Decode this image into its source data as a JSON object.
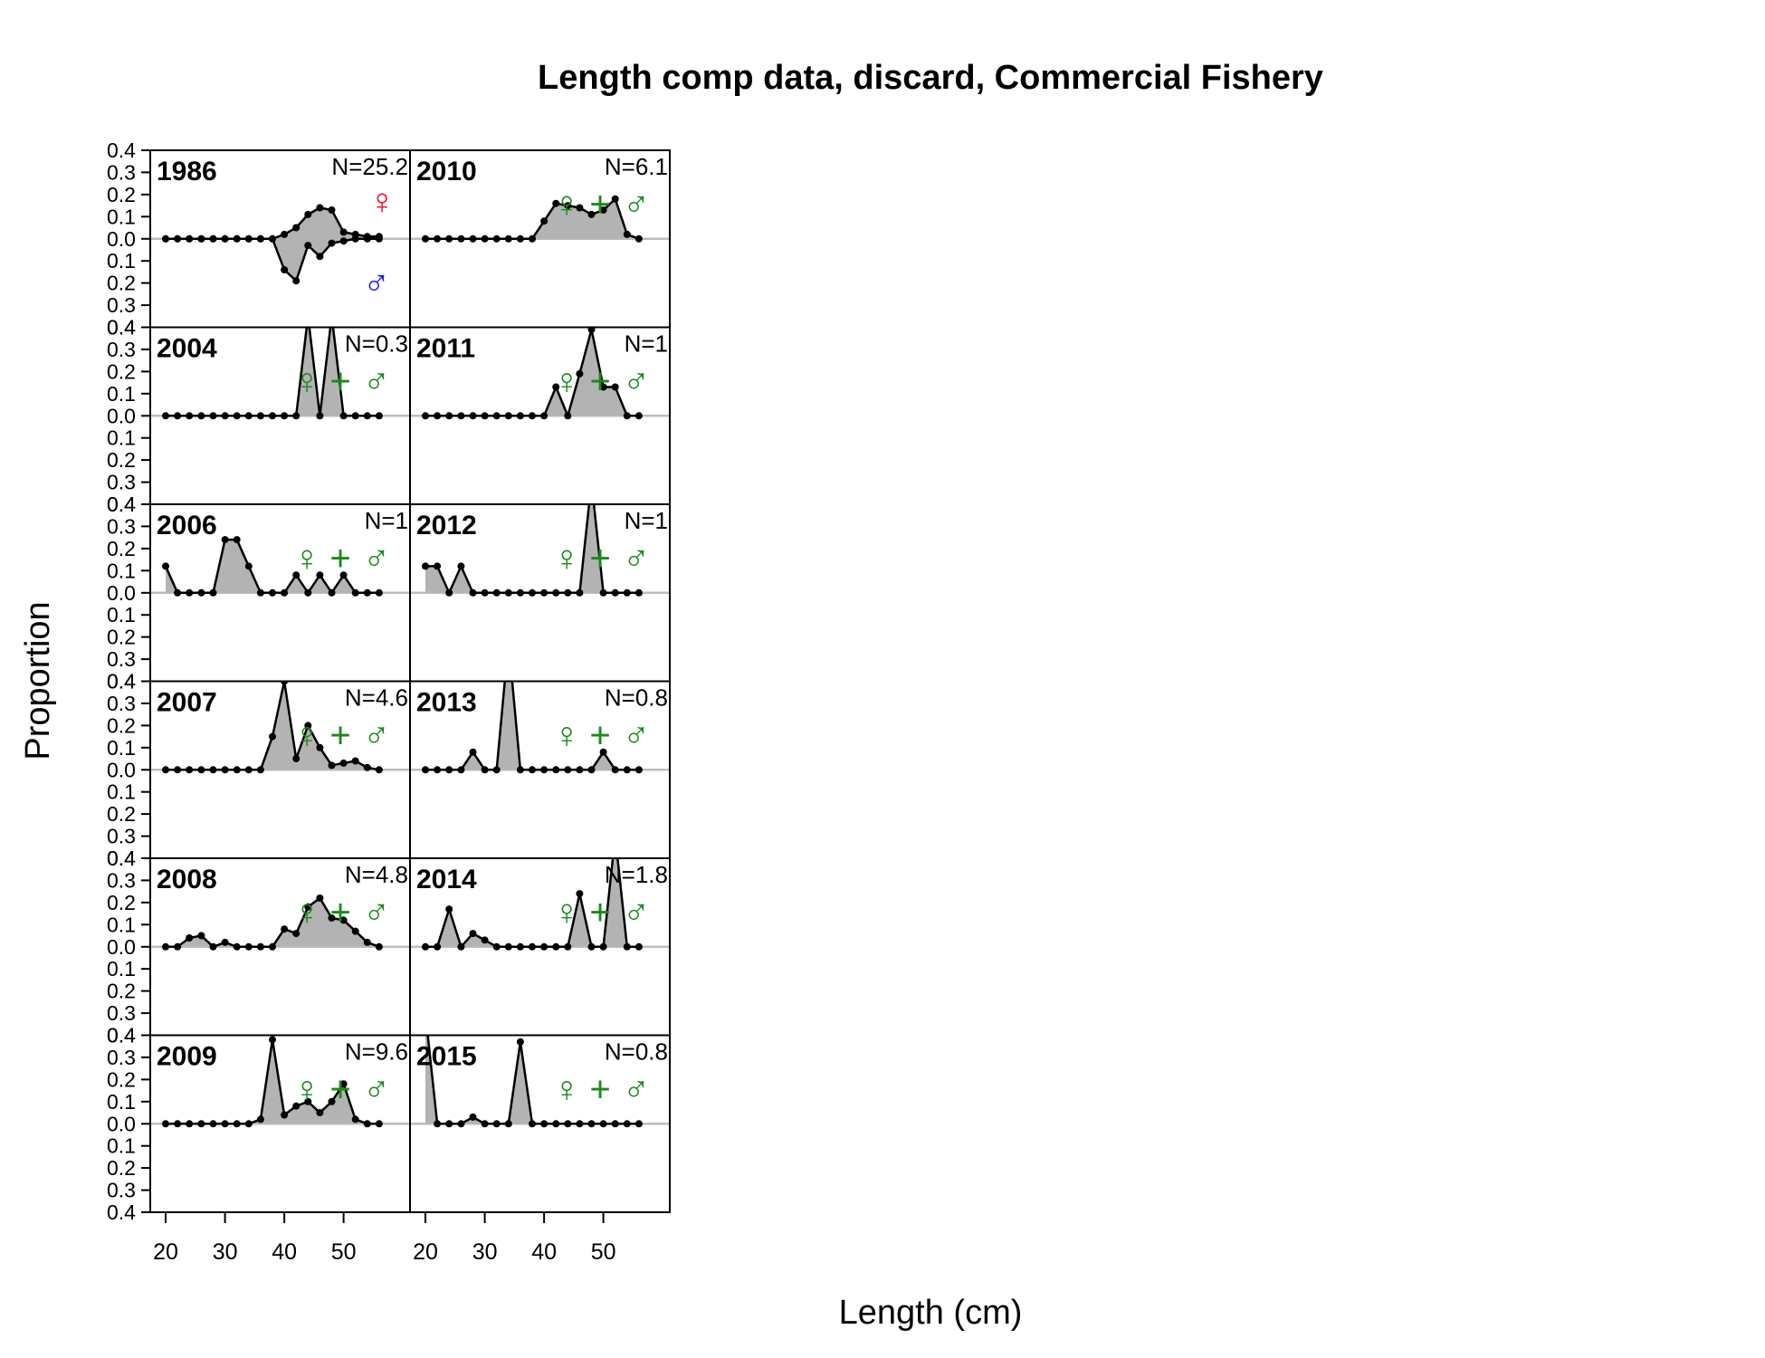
{
  "chart_data": {
    "type": "area",
    "title": "Length comp data, discard, Commercial Fishery",
    "xlabel": "Length (cm)",
    "ylabel": "Proportion",
    "x_ticks": [
      20,
      30,
      40,
      50
    ],
    "x_tick_labels": [
      "20",
      "30",
      "40",
      "50"
    ],
    "y_ticks": [
      0.4,
      0.3,
      0.2,
      0.1,
      0.0,
      0.1,
      0.2,
      0.3,
      0.4
    ],
    "y_tick_labels": [
      "0.4",
      "0.3",
      "0.2",
      "0.1",
      "0.0",
      "0.1",
      "0.2",
      "0.3",
      "0.4"
    ],
    "x": [
      20,
      22,
      24,
      26,
      28,
      30,
      32,
      34,
      36,
      38,
      40,
      42,
      44,
      46,
      48,
      50,
      52,
      54,
      56
    ],
    "ylim": [
      -0.4,
      0.4
    ],
    "sex_symbols": {
      "female": "♀",
      "male": "♂",
      "combined": "+"
    },
    "colors": {
      "female": "#e8121b",
      "male": "#1a1aff",
      "combined": "#1a8a1a",
      "fill": "#b3b3b3",
      "zero_line": "#bdbdbd"
    },
    "panels": [
      {
        "year": "1986",
        "n_label": "N=25.2",
        "col": 0,
        "row": 0,
        "sexed": true,
        "female": [
          0,
          0,
          0,
          0,
          0,
          0,
          0,
          0,
          0,
          0,
          0.02,
          0.05,
          0.11,
          0.14,
          0.13,
          0.03,
          0.02,
          0.01,
          0.01
        ],
        "male": [
          0,
          0,
          0,
          0,
          0,
          0,
          0,
          0,
          0,
          0,
          0.14,
          0.19,
          0.03,
          0.08,
          0.02,
          0.01,
          0,
          0,
          0
        ]
      },
      {
        "year": "2004",
        "n_label": "N=0.3",
        "col": 0,
        "row": 1,
        "sexed": false,
        "values": [
          0,
          0,
          0,
          0,
          0,
          0,
          0,
          0,
          0,
          0,
          0,
          0,
          0.45,
          0,
          0.45,
          0,
          0,
          0,
          0
        ]
      },
      {
        "year": "2006",
        "n_label": "N=1",
        "col": 0,
        "row": 2,
        "sexed": false,
        "values": [
          0.12,
          0,
          0,
          0,
          0,
          0.24,
          0.24,
          0.12,
          0,
          0,
          0,
          0.08,
          0,
          0.08,
          0,
          0.08,
          0,
          0,
          0
        ]
      },
      {
        "year": "2007",
        "n_label": "N=4.6",
        "col": 0,
        "row": 3,
        "sexed": false,
        "values": [
          0,
          0,
          0,
          0,
          0,
          0,
          0,
          0,
          0,
          0.15,
          0.4,
          0.05,
          0.2,
          0.1,
          0.02,
          0.03,
          0.04,
          0.01,
          0
        ]
      },
      {
        "year": "2008",
        "n_label": "N=4.8",
        "col": 0,
        "row": 4,
        "sexed": false,
        "values": [
          0,
          0,
          0.04,
          0.05,
          0,
          0.02,
          0,
          0,
          0,
          0,
          0.08,
          0.06,
          0.18,
          0.22,
          0.13,
          0.12,
          0.07,
          0.02,
          0
        ]
      },
      {
        "year": "2009",
        "n_label": "N=9.6",
        "col": 0,
        "row": 5,
        "sexed": false,
        "values": [
          0,
          0,
          0,
          0,
          0,
          0,
          0,
          0,
          0.02,
          0.38,
          0.04,
          0.08,
          0.1,
          0.05,
          0.1,
          0.18,
          0.02,
          0,
          0
        ]
      },
      {
        "year": "2010",
        "n_label": "N=6.1",
        "col": 1,
        "row": 0,
        "sexed": false,
        "values": [
          0,
          0,
          0,
          0,
          0,
          0,
          0,
          0,
          0,
          0,
          0.08,
          0.16,
          0.15,
          0.14,
          0.11,
          0.13,
          0.18,
          0.02,
          0
        ]
      },
      {
        "year": "2011",
        "n_label": "N=1",
        "col": 1,
        "row": 1,
        "sexed": false,
        "values": [
          0,
          0,
          0,
          0,
          0,
          0,
          0,
          0,
          0,
          0,
          0,
          0.13,
          0,
          0.19,
          0.39,
          0.13,
          0.13,
          0,
          0
        ]
      },
      {
        "year": "2012",
        "n_label": "N=1",
        "col": 1,
        "row": 2,
        "sexed": false,
        "values": [
          0.12,
          0.12,
          0,
          0.12,
          0,
          0,
          0,
          0,
          0,
          0,
          0,
          0,
          0,
          0,
          0.5,
          0,
          0,
          0,
          0
        ]
      },
      {
        "year": "2013",
        "n_label": "N=0.8",
        "col": 1,
        "row": 3,
        "sexed": false,
        "values": [
          0,
          0,
          0,
          0,
          0.08,
          0,
          0,
          0.58,
          0,
          0,
          0,
          0,
          0,
          0,
          0,
          0.08,
          0,
          0,
          0
        ]
      },
      {
        "year": "2014",
        "n_label": "N=1.8",
        "col": 1,
        "row": 4,
        "sexed": false,
        "values": [
          0,
          0,
          0.17,
          0,
          0.06,
          0.03,
          0,
          0,
          0,
          0,
          0,
          0,
          0,
          0.24,
          0,
          0,
          0.5,
          0,
          0
        ]
      },
      {
        "year": "2015",
        "n_label": "N=0.8",
        "col": 1,
        "row": 5,
        "sexed": false,
        "values": [
          0.5,
          0,
          0,
          0,
          0.03,
          0,
          0,
          0,
          0.37,
          0,
          0,
          0,
          0,
          0,
          0,
          0,
          0,
          0,
          0
        ]
      }
    ]
  }
}
